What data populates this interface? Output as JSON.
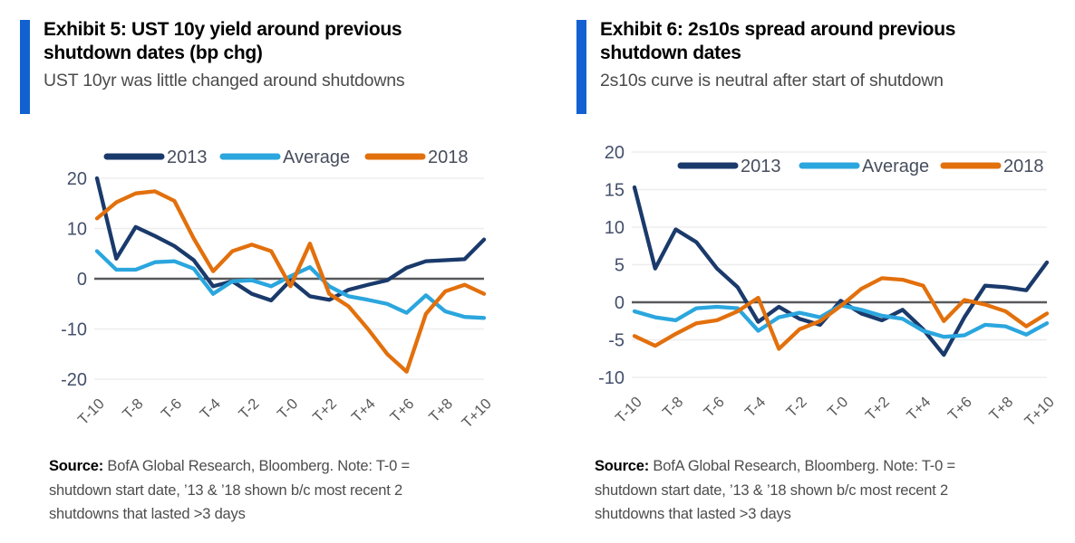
{
  "colors": {
    "accent_bar": "#1261D1",
    "navy": "#1A3A6B",
    "cyan": "#2BA6DE",
    "orange": "#E2700C",
    "gridline": "#EDEDED",
    "zero_line": "#58595B",
    "ytick_label": "#44506B",
    "xtick_label": "#595959",
    "legend_text": "#474E5D"
  },
  "chart_data": [
    {
      "type": "line",
      "title": "Exhibit 5: UST 10y yield around previous shutdown dates (bp chg)",
      "subtitle": "UST 10yr was little changed around shutdowns",
      "source_label": "Source:",
      "source_note": " BofA Global Research, Bloomberg. Note: T-0 = shutdown start date, ’13 & ’18 shown b/c most recent 2 shutdowns that lasted >3 days",
      "xlabel": "",
      "ylabel": "",
      "legend_position": "top",
      "grid": "horizontal",
      "x_values": [
        -10,
        -9,
        -8,
        -7,
        -6,
        -5,
        -4,
        -3,
        -2,
        -1,
        0,
        1,
        2,
        3,
        4,
        5,
        6,
        7,
        8,
        9,
        10
      ],
      "x_tick_values": [
        -10,
        -8,
        -6,
        -4,
        -2,
        0,
        2,
        4,
        6,
        8,
        10
      ],
      "x_tick_labels": [
        "T-10",
        "T-8",
        "T-6",
        "T-4",
        "T-2",
        "T-0",
        "T+2",
        "T+4",
        "T+6",
        "T+8",
        "T+10"
      ],
      "yticks": [
        20,
        10,
        0,
        -10,
        -20
      ],
      "ylim": [
        -20,
        20
      ],
      "series": [
        {
          "name": "2013",
          "color_key": "navy",
          "values": [
            20,
            4,
            10.3,
            8.5,
            6.5,
            3.7,
            -1.5,
            -0.5,
            -3,
            -4.3,
            -0.3,
            -3.5,
            -4.2,
            -2.2,
            -1.2,
            -0.3,
            2.2,
            3.5,
            3.7,
            3.9,
            7.8
          ]
        },
        {
          "name": "Average",
          "color_key": "cyan",
          "values": [
            5.5,
            1.8,
            1.8,
            3.3,
            3.5,
            2,
            -3,
            -0.5,
            -0.3,
            -1.5,
            0.5,
            2.3,
            -1.5,
            -3.5,
            -4.2,
            -5,
            -6.8,
            -3.3,
            -6.5,
            -7.6,
            -7.8
          ]
        },
        {
          "name": "2018",
          "color_key": "orange",
          "values": [
            12,
            15.2,
            17,
            17.4,
            15.5,
            8,
            1.5,
            5.5,
            6.8,
            5.5,
            -1.5,
            7,
            -3,
            -5.5,
            -10,
            -15,
            -18.5,
            -7,
            -2.5,
            -1.2,
            -3
          ]
        }
      ]
    },
    {
      "type": "line",
      "title": "Exhibit 6: 2s10s spread around previous shutdown dates",
      "subtitle": "2s10s curve is neutral after start of shutdown",
      "source_label": "Source:",
      "source_note": " BofA Global Research, Bloomberg. Note: T-0 = shutdown start date, ’13 & ’18 shown b/c most recent 2 shutdowns that lasted >3 days",
      "xlabel": "",
      "ylabel": "",
      "legend_position": "top",
      "grid": "horizontal",
      "x_values": [
        -10,
        -9,
        -8,
        -7,
        -6,
        -5,
        -4,
        -3,
        -2,
        -1,
        0,
        1,
        2,
        3,
        4,
        5,
        6,
        7,
        8,
        9,
        10
      ],
      "x_tick_values": [
        -10,
        -8,
        -6,
        -4,
        -2,
        0,
        2,
        4,
        6,
        8,
        10
      ],
      "x_tick_labels": [
        "T-10",
        "T-8",
        "T-6",
        "T-4",
        "T-2",
        "T-0",
        "T+2",
        "T+4",
        "T+6",
        "T+8",
        "T+10"
      ],
      "yticks": [
        20,
        15,
        10,
        5,
        0,
        -5,
        -10
      ],
      "ylim": [
        -10,
        20
      ],
      "series": [
        {
          "name": "2013",
          "color_key": "navy",
          "values": [
            15.3,
            4.5,
            9.7,
            8,
            4.5,
            2,
            -2.6,
            -0.6,
            -2.2,
            -3,
            0.2,
            -1.5,
            -2.4,
            -1,
            -3.6,
            -7,
            -2,
            2.2,
            2,
            1.6,
            5.3
          ]
        },
        {
          "name": "Average",
          "color_key": "cyan",
          "values": [
            -1.2,
            -2,
            -2.4,
            -0.8,
            -0.6,
            -0.8,
            -3.8,
            -2,
            -1.4,
            -2,
            -0.4,
            -1,
            -1.8,
            -2.2,
            -3.8,
            -4.6,
            -4.4,
            -3,
            -3.2,
            -4.3,
            -2.8
          ]
        },
        {
          "name": "2018",
          "color_key": "orange",
          "values": [
            -4.5,
            -5.8,
            -4.2,
            -2.8,
            -2.4,
            -1.2,
            0.6,
            -6.2,
            -3.6,
            -2.5,
            -0.5,
            1.8,
            3.2,
            3,
            2.2,
            -2.5,
            0.3,
            -0.3,
            -1.2,
            -3.2,
            -1.5
          ]
        }
      ]
    }
  ]
}
